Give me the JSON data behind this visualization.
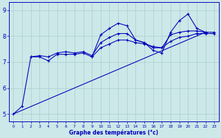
{
  "xlabel": "Graphe des températures (°c)",
  "xlim": [
    -0.5,
    23.5
  ],
  "ylim": [
    4.7,
    9.3
  ],
  "yticks": [
    5,
    6,
    7,
    8,
    9
  ],
  "xticks": [
    0,
    1,
    2,
    3,
    4,
    5,
    6,
    7,
    8,
    9,
    10,
    11,
    12,
    13,
    14,
    15,
    16,
    17,
    18,
    19,
    20,
    21,
    22,
    23
  ],
  "background_color": "#cce8e8",
  "grid_color": "#aacccc",
  "line_color": "#0000bb",
  "series1": [
    5.0,
    5.3,
    7.2,
    7.2,
    7.05,
    7.3,
    7.3,
    7.3,
    7.35,
    7.2,
    8.05,
    8.3,
    8.5,
    8.4,
    7.85,
    7.75,
    7.45,
    7.35,
    8.15,
    8.6,
    8.85,
    8.3,
    8.15,
    null
  ],
  "series2": [
    null,
    null,
    7.2,
    7.25,
    7.2,
    7.35,
    7.4,
    7.35,
    7.4,
    7.25,
    7.75,
    7.95,
    8.1,
    8.1,
    7.85,
    7.75,
    7.55,
    7.55,
    8.05,
    8.15,
    8.2,
    8.2,
    8.15,
    8.15
  ],
  "series3": [
    null,
    null,
    null,
    null,
    null,
    null,
    null,
    null,
    null,
    7.2,
    7.55,
    7.7,
    7.85,
    7.85,
    7.75,
    7.7,
    7.6,
    7.55,
    7.8,
    7.95,
    8.0,
    8.1,
    8.1,
    8.1
  ],
  "trend_x": [
    0,
    22
  ],
  "trend_y": [
    5.0,
    8.15
  ]
}
